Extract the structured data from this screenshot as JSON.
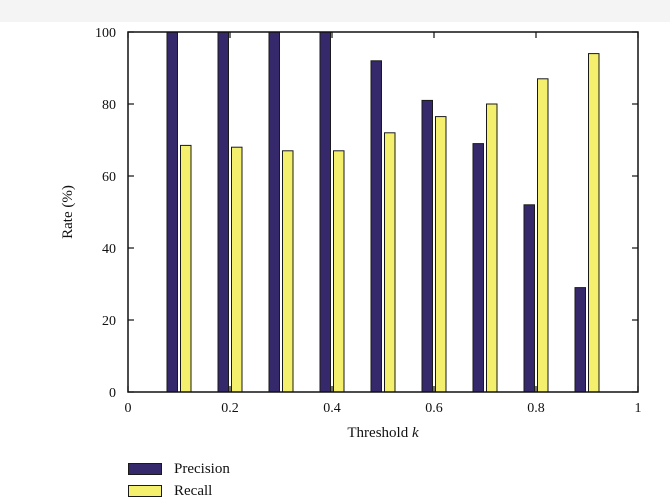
{
  "chart_data": {
    "type": "bar",
    "categories": [
      0.1,
      0.2,
      0.3,
      0.4,
      0.5,
      0.6,
      0.7,
      0.8,
      0.9
    ],
    "series": [
      {
        "name": "Precision",
        "color": "#35286b",
        "values": [
          100,
          100,
          100,
          100,
          92,
          81,
          69,
          52,
          29
        ]
      },
      {
        "name": "Recall",
        "color": "#f4f06e",
        "values": [
          68.5,
          68,
          67,
          67,
          72,
          76.5,
          80,
          87,
          94
        ]
      }
    ],
    "xlabel": "Threshold",
    "xlabel_italic": "k",
    "ylabel": "Rate (%)",
    "xlim": [
      0,
      1
    ],
    "ylim": [
      0,
      100
    ],
    "x_ticks": [
      "0",
      "0.2",
      "0.4",
      "0.6",
      "0.8",
      "1"
    ],
    "x_tick_values": [
      0,
      0.2,
      0.4,
      0.6,
      0.8,
      1
    ],
    "y_ticks": [
      "0",
      "20",
      "40",
      "60",
      "80",
      "100"
    ],
    "y_tick_values": [
      0,
      20,
      40,
      60,
      80,
      100
    ],
    "grid": false,
    "legend_position": "bottom-left"
  }
}
